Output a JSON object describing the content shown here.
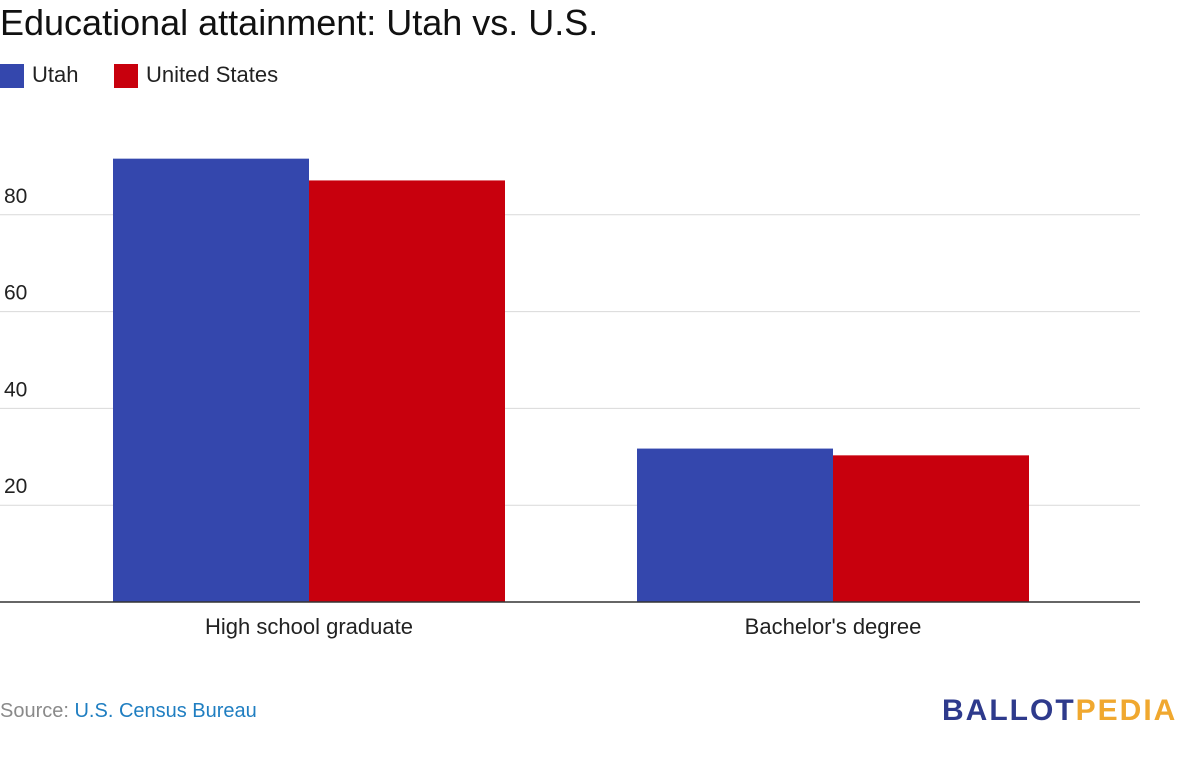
{
  "chart_data": {
    "type": "bar",
    "title": "Educational attainment: Utah vs. U.S.",
    "xlabel": "",
    "ylabel": "",
    "categories": [
      "High school graduate",
      "Bachelor's degree"
    ],
    "series": [
      {
        "name": "Utah",
        "color": "#3447ad",
        "values": [
          91.6,
          31.7
        ]
      },
      {
        "name": "United States",
        "color": "#c8000d",
        "values": [
          87.1,
          30.3
        ]
      }
    ],
    "ylim": [
      0,
      96
    ],
    "yticks": [
      20,
      40,
      60,
      80
    ],
    "ytick_labels": [
      "20",
      "40",
      "60",
      "80"
    ],
    "grid": true,
    "legend_position": "top-left"
  },
  "source": {
    "prefix": "Source: ",
    "link_text": "U.S. Census Bureau"
  },
  "logo": {
    "part1": "BALLOT",
    "part2": "PEDIA",
    "color1": "#2e3a8c",
    "color2": "#f0a82f"
  }
}
